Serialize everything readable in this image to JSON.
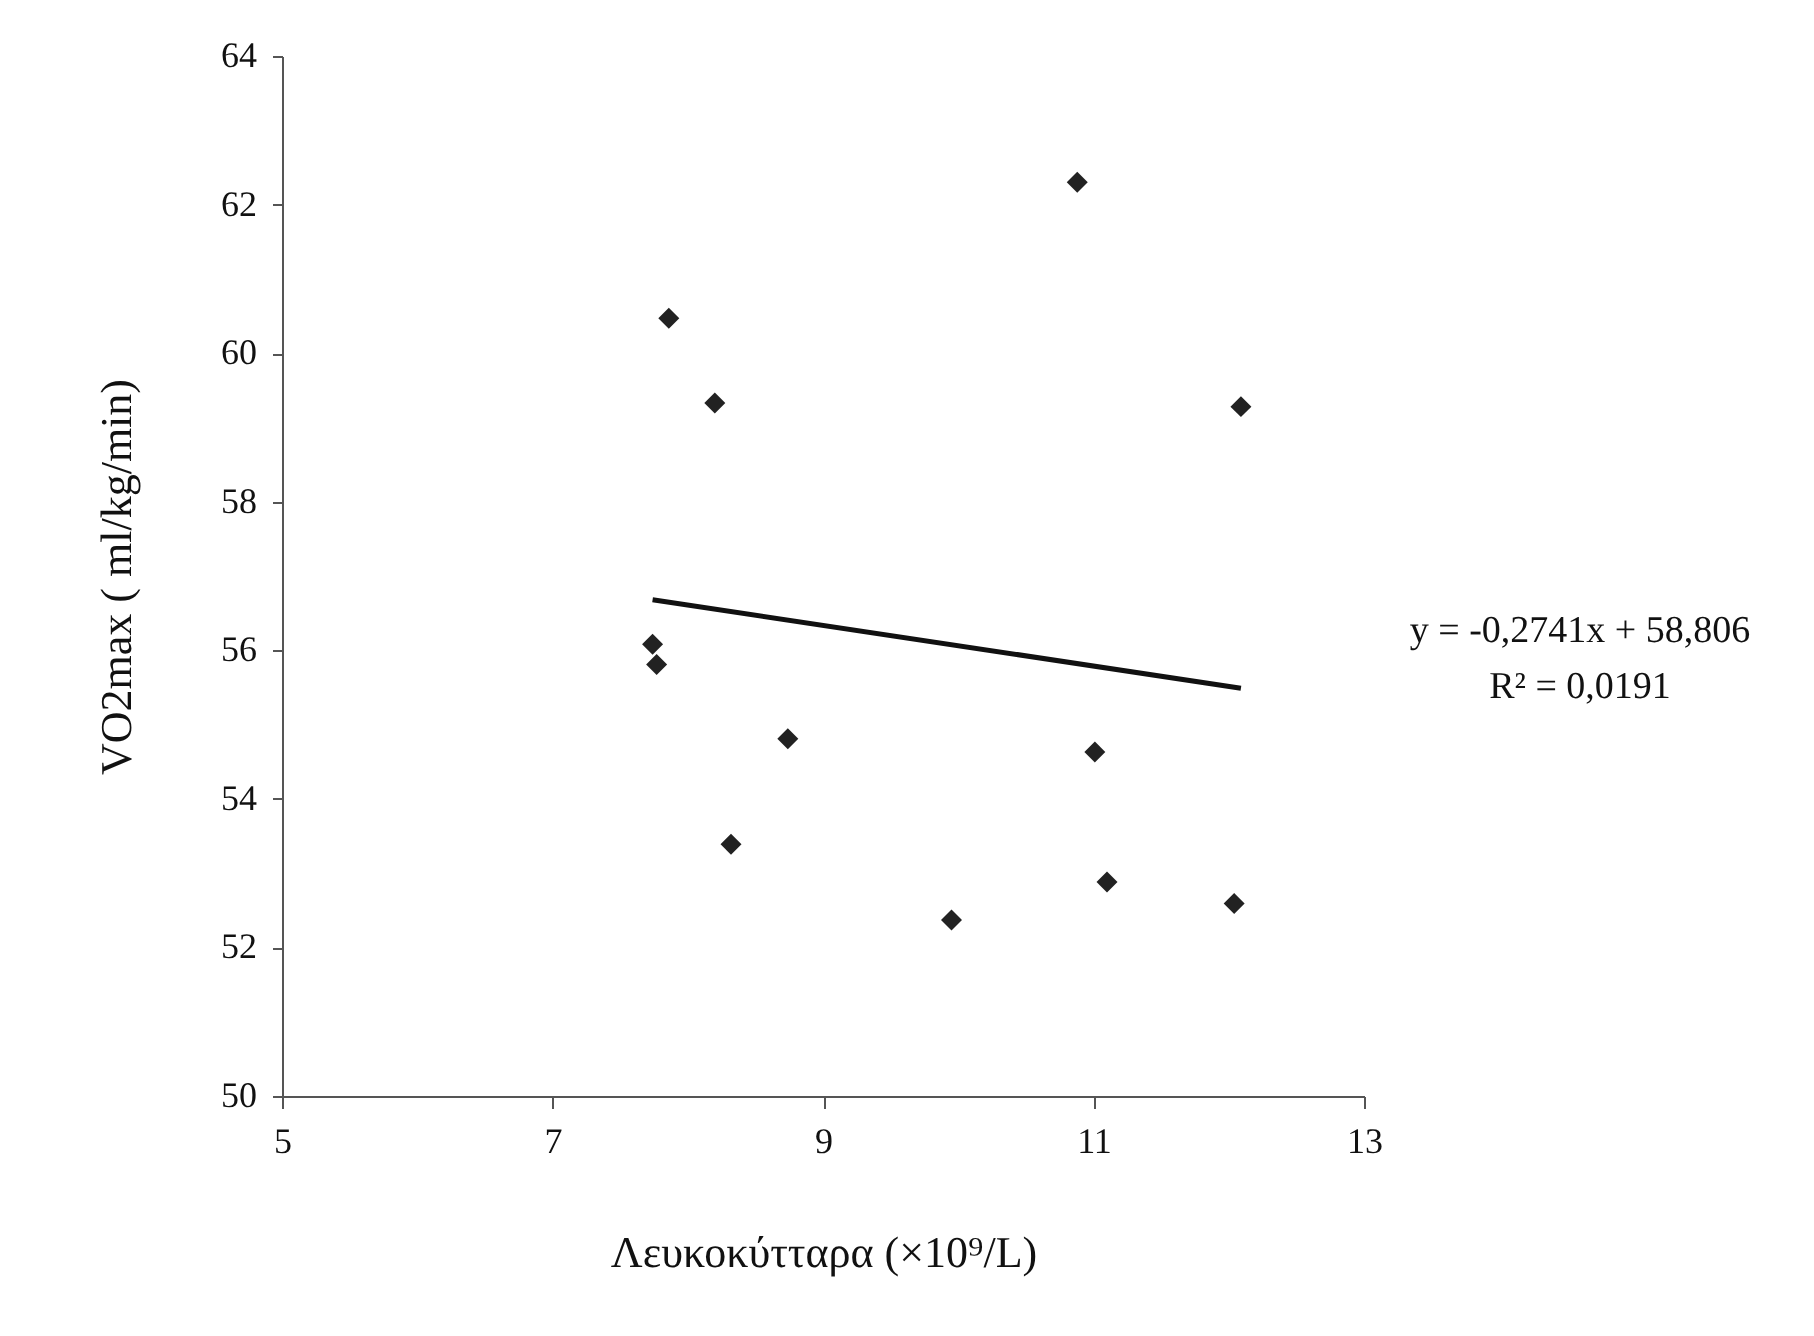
{
  "chart_data": {
    "type": "scatter",
    "xlabel": "Λευκοκύτταρα (×10⁹/L)",
    "ylabel": "VO2max ( ml/kg/min)",
    "xlim": [
      5,
      13
    ],
    "xticks": [
      5,
      7,
      9,
      11,
      13
    ],
    "ylim": [
      50,
      64
    ],
    "yticks": [
      50,
      52,
      54,
      56,
      58,
      60,
      62,
      64
    ],
    "marker": "diamond",
    "series": [
      {
        "color": "#222222",
        "x": [
          7.86,
          8.2,
          10.88,
          12.09,
          7.74,
          7.77,
          8.74,
          8.32,
          9.95,
          11.01,
          11.1,
          12.04
        ],
        "values": [
          60.47,
          59.33,
          62.3,
          59.28,
          56.08,
          55.81,
          54.81,
          53.39,
          52.37,
          54.63,
          52.88,
          52.59
        ]
      },
      {
        "type": "line",
        "color": "#111111",
        "line_style": "solid",
        "marker": "none",
        "x": [
          7.74,
          12.09
        ],
        "values": [
          56.68,
          55.49
        ]
      }
    ],
    "annotations": [
      "y = -0,2741x + 58,806",
      "R² = 0,0191"
    ]
  }
}
